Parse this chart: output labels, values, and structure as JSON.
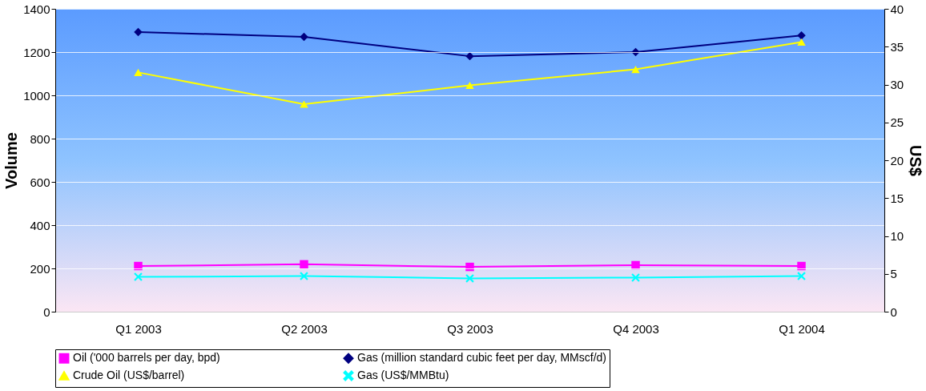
{
  "chart_data": {
    "type": "line",
    "ylabel": "Volume",
    "y2label": "US$",
    "categories": [
      "Q1 2003",
      "Q2 2003",
      "Q3 2003",
      "Q4 2003",
      "Q1 2004"
    ],
    "series": [
      {
        "name": "Oil ('000 barrels per day, bpd)",
        "color": "#ff00ff",
        "marker": "square",
        "values": [
          211,
          219,
          207,
          215,
          211
        ]
      },
      {
        "name": "Gas (million standard cubic feet per day, MMscf/d)",
        "color": "#000080",
        "marker": "diamond",
        "values": [
          1293,
          1270,
          1181,
          1200,
          1277
        ]
      },
      {
        "name": "Crude Oil (US$/barrel)",
        "color": "#ffff00",
        "marker": "triangle",
        "axis": "y2",
        "values": [
          31.6,
          27.4,
          29.9,
          32.0,
          35.6
        ]
      },
      {
        "name": "Gas (US$/MMBtu)",
        "color": "#00ffff",
        "marker": "cross",
        "axis": "y2",
        "values": [
          4.6,
          4.7,
          4.4,
          4.5,
          4.7
        ]
      }
    ],
    "ylim": [
      0,
      1400
    ],
    "yticks": [
      0,
      200,
      400,
      600,
      800,
      1000,
      1200,
      1400
    ],
    "y2lim": [
      0,
      40
    ],
    "y2ticks": [
      0,
      5,
      10,
      15,
      20,
      25,
      30,
      35,
      40
    ],
    "grid": "y",
    "legend": "bottom"
  }
}
